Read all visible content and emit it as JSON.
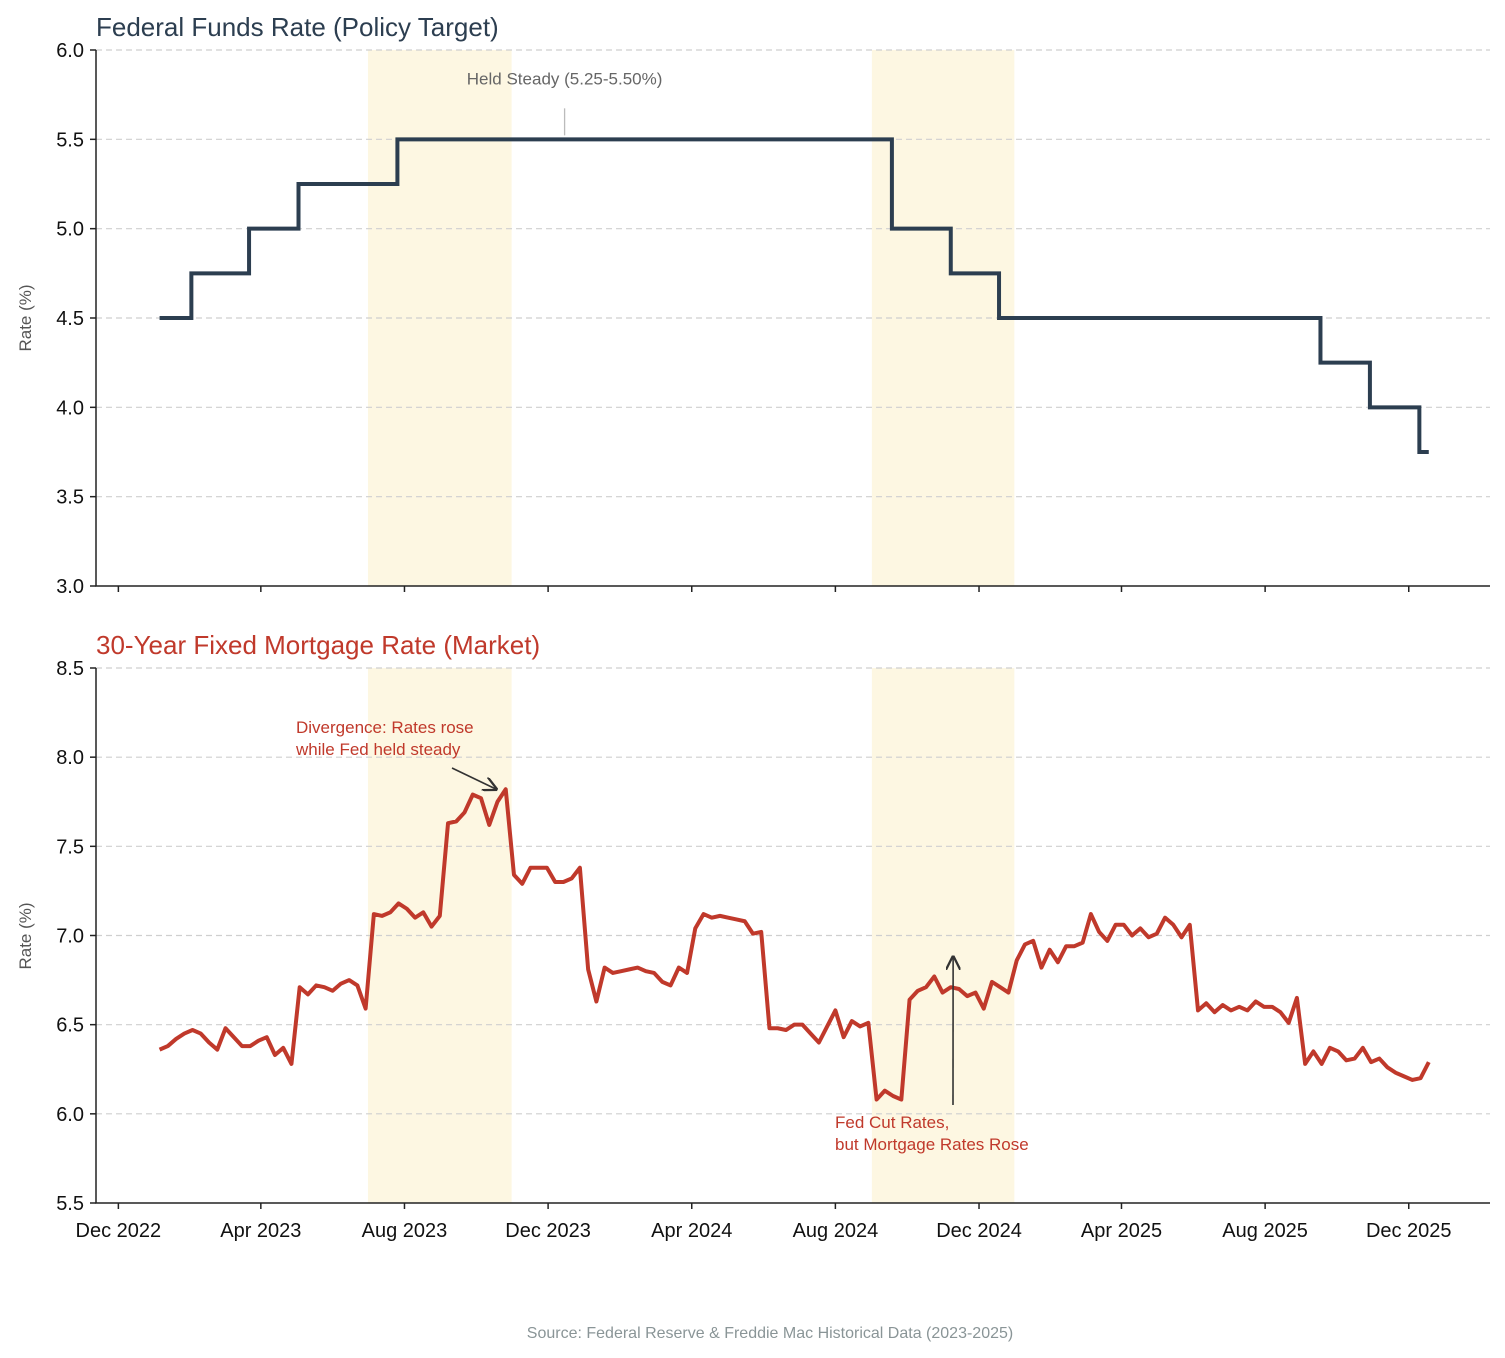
{
  "source": "Source: Federal Reserve & Freddie Mac Historical Data (2023-2025)",
  "colors": {
    "fed": "#2c3e50",
    "mortgage": "#c0392b",
    "highlight": "#fbf1cf",
    "annotation_muted": "#666666"
  },
  "chart_data": [
    {
      "type": "line",
      "step": "post",
      "title": "Federal Funds Rate (Policy Target)",
      "ylabel": "Rate (%)",
      "ylim": [
        3.0,
        6.0
      ],
      "yticks": [
        "3.0",
        "3.5",
        "4.0",
        "4.5",
        "5.0",
        "5.5",
        "6.0"
      ],
      "xlim": [
        "2022-11-12",
        "2026-02-08"
      ],
      "xticks": [
        "2022-12-01",
        "2023-04-01",
        "2023-08-01",
        "2023-12-01",
        "2024-04-01",
        "2024-08-01",
        "2024-12-01",
        "2025-04-01",
        "2025-08-01",
        "2025-12-01"
      ],
      "grid": true,
      "highlight_periods": [
        [
          "2023-07-01",
          "2023-10-31"
        ],
        [
          "2024-09-01",
          "2024-12-31"
        ]
      ],
      "series": [
        {
          "x": [
            "2023-01-05",
            "2023-02-01",
            "2023-03-22",
            "2023-05-03",
            "2023-07-26",
            "2024-09-18",
            "2024-11-07",
            "2024-12-18",
            "2025-09-17",
            "2025-10-29",
            "2025-12-10",
            "2025-12-18"
          ],
          "values": [
            4.5,
            4.75,
            5.0,
            5.25,
            5.5,
            5.0,
            4.75,
            4.5,
            4.25,
            4.0,
            3.75,
            3.75
          ]
        }
      ],
      "annotations": [
        {
          "text": "Held Steady (5.25-5.50%)",
          "x": "2023-12-15",
          "y": 5.5
        }
      ]
    },
    {
      "type": "line",
      "title": "30-Year Fixed Mortgage Rate (Market)",
      "ylabel": "Rate (%)",
      "ylim": [
        5.5,
        8.5
      ],
      "yticks": [
        "5.5",
        "6.0",
        "6.5",
        "7.0",
        "7.5",
        "8.0",
        "8.5"
      ],
      "xlim": [
        "2022-11-12",
        "2026-02-08"
      ],
      "xticks": [
        "2022-12-01",
        "2023-04-01",
        "2023-08-01",
        "2023-12-01",
        "2024-04-01",
        "2024-08-01",
        "2024-12-01",
        "2025-04-01",
        "2025-08-01",
        "2025-12-01"
      ],
      "xticklabels": [
        "Dec 2022",
        "Apr 2023",
        "Aug 2023",
        "Dec 2023",
        "Apr 2024",
        "Aug 2024",
        "Dec 2024",
        "Apr 2025",
        "Aug 2025",
        "Dec 2025"
      ],
      "grid": true,
      "highlight_periods": [
        [
          "2023-07-01",
          "2023-10-31"
        ],
        [
          "2024-09-01",
          "2024-12-31"
        ]
      ],
      "series": [
        {
          "x": [
            "2023-01-05",
            "2023-01-12",
            "2023-01-19",
            "2023-01-26",
            "2023-02-02",
            "2023-02-09",
            "2023-02-16",
            "2023-02-23",
            "2023-03-02",
            "2023-03-09",
            "2023-03-16",
            "2023-03-23",
            "2023-03-30",
            "2023-04-06",
            "2023-04-13",
            "2023-04-20",
            "2023-04-27",
            "2023-05-04",
            "2023-05-11",
            "2023-05-18",
            "2023-05-25",
            "2023-06-01",
            "2023-06-08",
            "2023-06-15",
            "2023-06-22",
            "2023-06-29",
            "2023-07-06",
            "2023-07-13",
            "2023-07-20",
            "2023-07-27",
            "2023-08-03",
            "2023-08-10",
            "2023-08-17",
            "2023-08-24",
            "2023-08-31",
            "2023-09-07",
            "2023-09-14",
            "2023-09-21",
            "2023-09-28",
            "2023-10-05",
            "2023-10-12",
            "2023-10-19",
            "2023-10-26",
            "2023-11-02",
            "2023-11-09",
            "2023-11-16",
            "2023-11-23",
            "2023-11-30",
            "2023-12-07",
            "2023-12-14",
            "2023-12-21",
            "2023-12-28",
            "2024-01-04",
            "2024-01-11",
            "2024-01-18",
            "2024-01-25",
            "2024-02-01",
            "2024-02-08",
            "2024-02-15",
            "2024-02-22",
            "2024-02-29",
            "2024-03-07",
            "2024-03-14",
            "2024-03-21",
            "2024-03-28",
            "2024-04-04",
            "2024-04-11",
            "2024-04-18",
            "2024-04-25",
            "2024-05-02",
            "2024-05-09",
            "2024-05-16",
            "2024-05-23",
            "2024-05-30",
            "2024-06-06",
            "2024-06-13",
            "2024-06-20",
            "2024-06-27",
            "2024-07-04",
            "2024-07-11",
            "2024-07-18",
            "2024-07-25",
            "2024-08-01",
            "2024-08-08",
            "2024-08-15",
            "2024-08-22",
            "2024-08-29",
            "2024-09-05",
            "2024-09-12",
            "2024-09-19",
            "2024-09-26",
            "2024-10-03",
            "2024-10-10",
            "2024-10-17",
            "2024-10-24",
            "2024-10-31",
            "2024-11-07",
            "2024-11-14",
            "2024-11-21",
            "2024-11-28",
            "2024-12-05",
            "2024-12-12",
            "2024-12-19",
            "2024-12-26",
            "2025-01-02",
            "2025-01-09",
            "2025-01-16",
            "2025-01-23",
            "2025-01-30",
            "2025-02-06",
            "2025-02-13",
            "2025-02-20",
            "2025-02-27",
            "2025-03-06",
            "2025-03-13",
            "2025-03-20",
            "2025-03-27",
            "2025-04-03",
            "2025-04-10",
            "2025-04-17",
            "2025-04-24",
            "2025-05-01",
            "2025-05-08",
            "2025-05-15",
            "2025-05-22",
            "2025-05-29",
            "2025-06-05",
            "2025-06-12",
            "2025-06-19",
            "2025-06-26",
            "2025-07-03",
            "2025-07-10",
            "2025-07-17",
            "2025-07-24",
            "2025-07-31",
            "2025-08-07",
            "2025-08-14",
            "2025-08-21",
            "2025-08-28",
            "2025-09-04",
            "2025-09-11",
            "2025-09-18",
            "2025-09-25",
            "2025-10-02",
            "2025-10-09",
            "2025-10-16",
            "2025-10-23",
            "2025-10-30",
            "2025-11-06",
            "2025-11-13",
            "2025-11-20",
            "2025-11-27",
            "2025-12-04",
            "2025-12-11",
            "2025-12-18"
          ],
          "values": [
            6.36,
            6.38,
            6.42,
            6.45,
            6.47,
            6.45,
            6.4,
            6.36,
            6.48,
            6.43,
            6.38,
            6.38,
            6.41,
            6.43,
            6.33,
            6.37,
            6.28,
            6.71,
            6.67,
            6.72,
            6.71,
            6.69,
            6.73,
            6.75,
            6.72,
            6.59,
            7.12,
            7.11,
            7.13,
            7.18,
            7.15,
            7.1,
            7.13,
            7.05,
            7.11,
            7.63,
            7.64,
            7.69,
            7.79,
            7.77,
            7.62,
            7.75,
            7.82,
            7.34,
            7.29,
            7.38,
            7.38,
            7.38,
            7.3,
            7.3,
            7.32,
            7.38,
            6.81,
            6.63,
            6.82,
            6.79,
            6.8,
            6.81,
            6.82,
            6.8,
            6.79,
            6.74,
            6.72,
            6.82,
            6.79,
            7.04,
            7.12,
            7.1,
            7.11,
            7.1,
            7.09,
            7.08,
            7.01,
            7.02,
            6.48,
            6.48,
            6.47,
            6.5,
            6.5,
            6.45,
            6.4,
            6.49,
            6.58,
            6.43,
            6.52,
            6.49,
            6.51,
            6.08,
            6.13,
            6.1,
            6.08,
            6.64,
            6.69,
            6.71,
            6.77,
            6.68,
            6.71,
            6.7,
            6.66,
            6.68,
            6.59,
            6.74,
            6.71,
            6.68,
            6.86,
            6.95,
            6.97,
            6.82,
            6.92,
            6.85,
            6.94,
            6.94,
            6.96,
            7.12,
            7.02,
            6.97,
            7.06,
            7.06,
            7.0,
            7.04,
            6.99,
            7.01,
            7.1,
            7.06,
            6.99,
            7.06,
            6.58,
            6.62,
            6.57,
            6.61,
            6.58,
            6.6,
            6.58,
            6.63,
            6.6,
            6.6,
            6.57,
            6.51,
            6.65,
            6.28,
            6.35,
            6.28,
            6.37,
            6.35,
            6.3,
            6.31,
            6.37,
            6.29,
            6.31,
            6.26,
            6.23,
            6.21,
            6.19,
            6.2,
            6.29
          ]
        }
      ],
      "annotations": [
        {
          "text_lines": [
            "Divergence: Rates rose",
            "while Fed held steady"
          ],
          "target_x": "2023-10-18",
          "target_y": 7.82
        },
        {
          "text_lines": [
            "Fed Cut Rates,",
            "but Mortgage Rates Rose"
          ],
          "target_x": "2024-11-09",
          "target_y": 6.88
        }
      ]
    }
  ]
}
